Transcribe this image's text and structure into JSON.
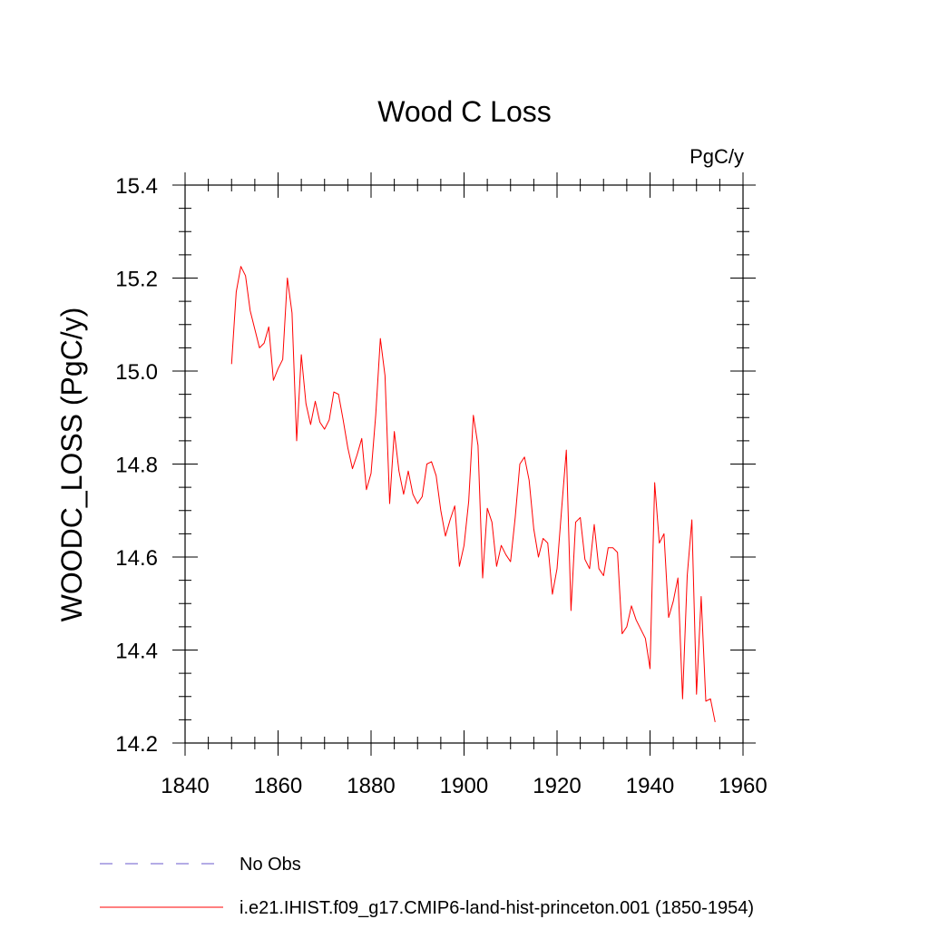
{
  "chart_data": {
    "type": "line",
    "title": "Wood C Loss",
    "units_label": "PgC/y",
    "ylabel": "WOODC_LOSS  (PgC/y)",
    "xlim": [
      1840,
      1960
    ],
    "ylim": [
      14.2,
      15.4
    ],
    "x_ticks": [
      1840,
      1860,
      1880,
      1900,
      1920,
      1940,
      1960
    ],
    "x_tick_labels": [
      "1840",
      "1860",
      "1880",
      "1900",
      "1920",
      "1940",
      "1960"
    ],
    "x_minor_step": 5,
    "y_ticks": [
      14.2,
      14.4,
      14.6,
      14.8,
      15.0,
      15.2,
      15.4
    ],
    "y_tick_labels": [
      "14.2",
      "14.4",
      "14.6",
      "14.8",
      "15.0",
      "15.2",
      "15.4"
    ],
    "y_minor_step": 0.05,
    "grid": false,
    "legend_position": "bottom",
    "legend": [
      {
        "label": "No Obs",
        "color": "#6a5acd",
        "dash": true
      },
      {
        "label": "i.e21.IHIST.f09_g17.CMIP6-land-hist-princeton.001 (1850-1954)",
        "color": "#ff0000",
        "dash": false
      }
    ],
    "series": [
      {
        "color": "#ff0000",
        "x": [
          1850,
          1851,
          1852,
          1853,
          1854,
          1855,
          1856,
          1857,
          1858,
          1859,
          1860,
          1861,
          1862,
          1863,
          1864,
          1865,
          1866,
          1867,
          1868,
          1869,
          1870,
          1871,
          1872,
          1873,
          1874,
          1875,
          1876,
          1877,
          1878,
          1879,
          1880,
          1881,
          1882,
          1883,
          1884,
          1885,
          1886,
          1887,
          1888,
          1889,
          1890,
          1891,
          1892,
          1893,
          1894,
          1895,
          1896,
          1897,
          1898,
          1899,
          1900,
          1901,
          1902,
          1903,
          1904,
          1905,
          1906,
          1907,
          1908,
          1909,
          1910,
          1911,
          1912,
          1913,
          1914,
          1915,
          1916,
          1917,
          1918,
          1919,
          1920,
          1921,
          1922,
          1923,
          1924,
          1925,
          1926,
          1927,
          1928,
          1929,
          1930,
          1931,
          1932,
          1933,
          1934,
          1935,
          1936,
          1937,
          1938,
          1939,
          1940,
          1941,
          1942,
          1943,
          1944,
          1945,
          1946,
          1947,
          1948,
          1949,
          1950,
          1951,
          1952,
          1953,
          1954
        ],
        "values": [
          15.015,
          15.17,
          15.225,
          15.205,
          15.13,
          15.09,
          15.05,
          15.06,
          15.095,
          14.98,
          15.005,
          15.025,
          15.2,
          15.125,
          14.85,
          15.035,
          14.93,
          14.885,
          14.935,
          14.89,
          14.875,
          14.895,
          14.955,
          14.95,
          14.895,
          14.835,
          14.79,
          14.82,
          14.855,
          14.745,
          14.78,
          14.905,
          15.07,
          14.99,
          14.715,
          14.87,
          14.785,
          14.735,
          14.785,
          14.735,
          14.715,
          14.73,
          14.8,
          14.805,
          14.775,
          14.7,
          14.645,
          14.68,
          14.71,
          14.58,
          14.625,
          14.72,
          14.905,
          14.84,
          14.555,
          14.705,
          14.675,
          14.58,
          14.625,
          14.605,
          14.59,
          14.685,
          14.8,
          14.815,
          14.765,
          14.66,
          14.6,
          14.64,
          14.63,
          14.52,
          14.575,
          14.705,
          14.83,
          14.485,
          14.675,
          14.685,
          14.595,
          14.575,
          14.67,
          14.575,
          14.56,
          14.62,
          14.62,
          14.61,
          14.435,
          14.45,
          14.495,
          14.465,
          14.445,
          14.425,
          14.36,
          14.76,
          14.63,
          14.65,
          14.47,
          14.505,
          14.555,
          14.295,
          14.56,
          14.68,
          14.305,
          14.515,
          14.29,
          14.295,
          14.245
        ]
      }
    ]
  }
}
